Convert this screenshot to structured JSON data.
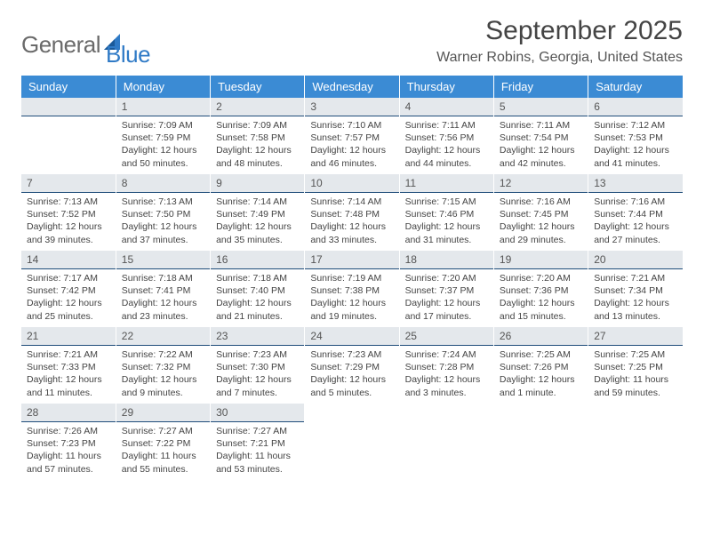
{
  "brand": {
    "word1": "General",
    "word2": "Blue"
  },
  "title": "September 2025",
  "location": "Warner Robins, Georgia, United States",
  "headers": [
    "Sunday",
    "Monday",
    "Tuesday",
    "Wednesday",
    "Thursday",
    "Friday",
    "Saturday"
  ],
  "colors": {
    "header_bg": "#3b8bd4",
    "daynum_bg": "#e4e8ec",
    "rule": "#1f4d7a",
    "text": "#444444",
    "logo_gray": "#6a6a6a",
    "logo_blue": "#2f7ac6"
  },
  "start_offset": 1,
  "days": [
    {
      "n": "1",
      "sr": "7:09 AM",
      "ss": "7:59 PM",
      "dl": "12 hours and 50 minutes."
    },
    {
      "n": "2",
      "sr": "7:09 AM",
      "ss": "7:58 PM",
      "dl": "12 hours and 48 minutes."
    },
    {
      "n": "3",
      "sr": "7:10 AM",
      "ss": "7:57 PM",
      "dl": "12 hours and 46 minutes."
    },
    {
      "n": "4",
      "sr": "7:11 AM",
      "ss": "7:56 PM",
      "dl": "12 hours and 44 minutes."
    },
    {
      "n": "5",
      "sr": "7:11 AM",
      "ss": "7:54 PM",
      "dl": "12 hours and 42 minutes."
    },
    {
      "n": "6",
      "sr": "7:12 AM",
      "ss": "7:53 PM",
      "dl": "12 hours and 41 minutes."
    },
    {
      "n": "7",
      "sr": "7:13 AM",
      "ss": "7:52 PM",
      "dl": "12 hours and 39 minutes."
    },
    {
      "n": "8",
      "sr": "7:13 AM",
      "ss": "7:50 PM",
      "dl": "12 hours and 37 minutes."
    },
    {
      "n": "9",
      "sr": "7:14 AM",
      "ss": "7:49 PM",
      "dl": "12 hours and 35 minutes."
    },
    {
      "n": "10",
      "sr": "7:14 AM",
      "ss": "7:48 PM",
      "dl": "12 hours and 33 minutes."
    },
    {
      "n": "11",
      "sr": "7:15 AM",
      "ss": "7:46 PM",
      "dl": "12 hours and 31 minutes."
    },
    {
      "n": "12",
      "sr": "7:16 AM",
      "ss": "7:45 PM",
      "dl": "12 hours and 29 minutes."
    },
    {
      "n": "13",
      "sr": "7:16 AM",
      "ss": "7:44 PM",
      "dl": "12 hours and 27 minutes."
    },
    {
      "n": "14",
      "sr": "7:17 AM",
      "ss": "7:42 PM",
      "dl": "12 hours and 25 minutes."
    },
    {
      "n": "15",
      "sr": "7:18 AM",
      "ss": "7:41 PM",
      "dl": "12 hours and 23 minutes."
    },
    {
      "n": "16",
      "sr": "7:18 AM",
      "ss": "7:40 PM",
      "dl": "12 hours and 21 minutes."
    },
    {
      "n": "17",
      "sr": "7:19 AM",
      "ss": "7:38 PM",
      "dl": "12 hours and 19 minutes."
    },
    {
      "n": "18",
      "sr": "7:20 AM",
      "ss": "7:37 PM",
      "dl": "12 hours and 17 minutes."
    },
    {
      "n": "19",
      "sr": "7:20 AM",
      "ss": "7:36 PM",
      "dl": "12 hours and 15 minutes."
    },
    {
      "n": "20",
      "sr": "7:21 AM",
      "ss": "7:34 PM",
      "dl": "12 hours and 13 minutes."
    },
    {
      "n": "21",
      "sr": "7:21 AM",
      "ss": "7:33 PM",
      "dl": "12 hours and 11 minutes."
    },
    {
      "n": "22",
      "sr": "7:22 AM",
      "ss": "7:32 PM",
      "dl": "12 hours and 9 minutes."
    },
    {
      "n": "23",
      "sr": "7:23 AM",
      "ss": "7:30 PM",
      "dl": "12 hours and 7 minutes."
    },
    {
      "n": "24",
      "sr": "7:23 AM",
      "ss": "7:29 PM",
      "dl": "12 hours and 5 minutes."
    },
    {
      "n": "25",
      "sr": "7:24 AM",
      "ss": "7:28 PM",
      "dl": "12 hours and 3 minutes."
    },
    {
      "n": "26",
      "sr": "7:25 AM",
      "ss": "7:26 PM",
      "dl": "12 hours and 1 minute."
    },
    {
      "n": "27",
      "sr": "7:25 AM",
      "ss": "7:25 PM",
      "dl": "11 hours and 59 minutes."
    },
    {
      "n": "28",
      "sr": "7:26 AM",
      "ss": "7:23 PM",
      "dl": "11 hours and 57 minutes."
    },
    {
      "n": "29",
      "sr": "7:27 AM",
      "ss": "7:22 PM",
      "dl": "11 hours and 55 minutes."
    },
    {
      "n": "30",
      "sr": "7:27 AM",
      "ss": "7:21 PM",
      "dl": "11 hours and 53 minutes."
    }
  ],
  "labels": {
    "sunrise": "Sunrise: ",
    "sunset": "Sunset: ",
    "daylight": "Daylight: "
  }
}
